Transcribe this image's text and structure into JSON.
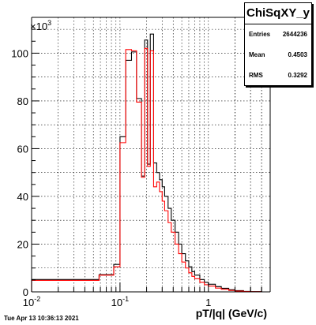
{
  "title": "ChiSqXY_y",
  "stats": [
    {
      "label": "Entries",
      "value": "2644236"
    },
    {
      "label": "Mean",
      "value": "0.4503"
    },
    {
      "label": "RMS",
      "value": "0.3292"
    }
  ],
  "timestamp": "Tue Apr 13 10:36:13 2021",
  "colors": {
    "black_hist": "#000000",
    "red_hist": "#ff0000",
    "grid": "#000000"
  },
  "chart_data": {
    "type": "histogram",
    "title": "ChiSqXY_y",
    "xlabel": "pT/|q| (GeV/c)",
    "ylabel": "",
    "y_multiplier": "×10^3",
    "xscale": "log",
    "xlim": [
      0.01,
      5
    ],
    "ylim": [
      0,
      115
    ],
    "x_ticks": [
      0.01,
      0.1,
      1
    ],
    "x_tick_labels": [
      "10^-2",
      "10^-1",
      "1"
    ],
    "y_ticks": [
      0,
      20,
      40,
      60,
      80,
      100
    ],
    "grid": true,
    "series": [
      {
        "color": "black",
        "x": [
          0.01,
          0.042,
          0.058,
          0.077,
          0.085,
          0.1,
          0.116,
          0.135,
          0.154,
          0.175,
          0.19,
          0.205,
          0.22,
          0.24,
          0.26,
          0.28,
          0.3,
          0.32,
          0.35,
          0.38,
          0.42,
          0.46,
          0.5,
          0.55,
          0.6,
          0.65,
          0.7,
          0.8,
          0.9,
          1.0,
          1.2,
          1.4,
          1.7,
          2.0,
          2.5,
          3.0,
          4.0
        ],
        "y": [
          5.2,
          5.2,
          7.2,
          7.2,
          11.5,
          65,
          97,
          100.5,
          81,
          48.5,
          105.5,
          53.5,
          108,
          54,
          50,
          47,
          44,
          40,
          35,
          30,
          25,
          20,
          16,
          13,
          10.5,
          8.5,
          7,
          5.2,
          4,
          3.2,
          2.2,
          1.5,
          0.9,
          0.5,
          0.2,
          0.1,
          0
        ]
      },
      {
        "color": "red",
        "x": [
          0.01,
          0.042,
          0.058,
          0.077,
          0.085,
          0.1,
          0.116,
          0.135,
          0.154,
          0.175,
          0.19,
          0.205,
          0.22,
          0.24,
          0.26,
          0.28,
          0.3,
          0.32,
          0.35,
          0.38,
          0.42,
          0.46,
          0.5,
          0.55,
          0.6,
          0.65,
          0.7,
          0.8,
          0.9,
          1.0,
          1.2,
          1.4,
          1.7,
          2.0,
          2.5,
          3.0,
          4.0
        ],
        "y": [
          4.8,
          4.8,
          7.0,
          7.0,
          10.5,
          62.5,
          101.5,
          101,
          79.5,
          48,
          102,
          52.5,
          101,
          44,
          46,
          42,
          38,
          34,
          29,
          25,
          20,
          16,
          12.5,
          10,
          8,
          6.5,
          5.5,
          4,
          3,
          2.4,
          1.6,
          1.1,
          0.6,
          0.3,
          0.15,
          0.05,
          0
        ]
      }
    ]
  }
}
